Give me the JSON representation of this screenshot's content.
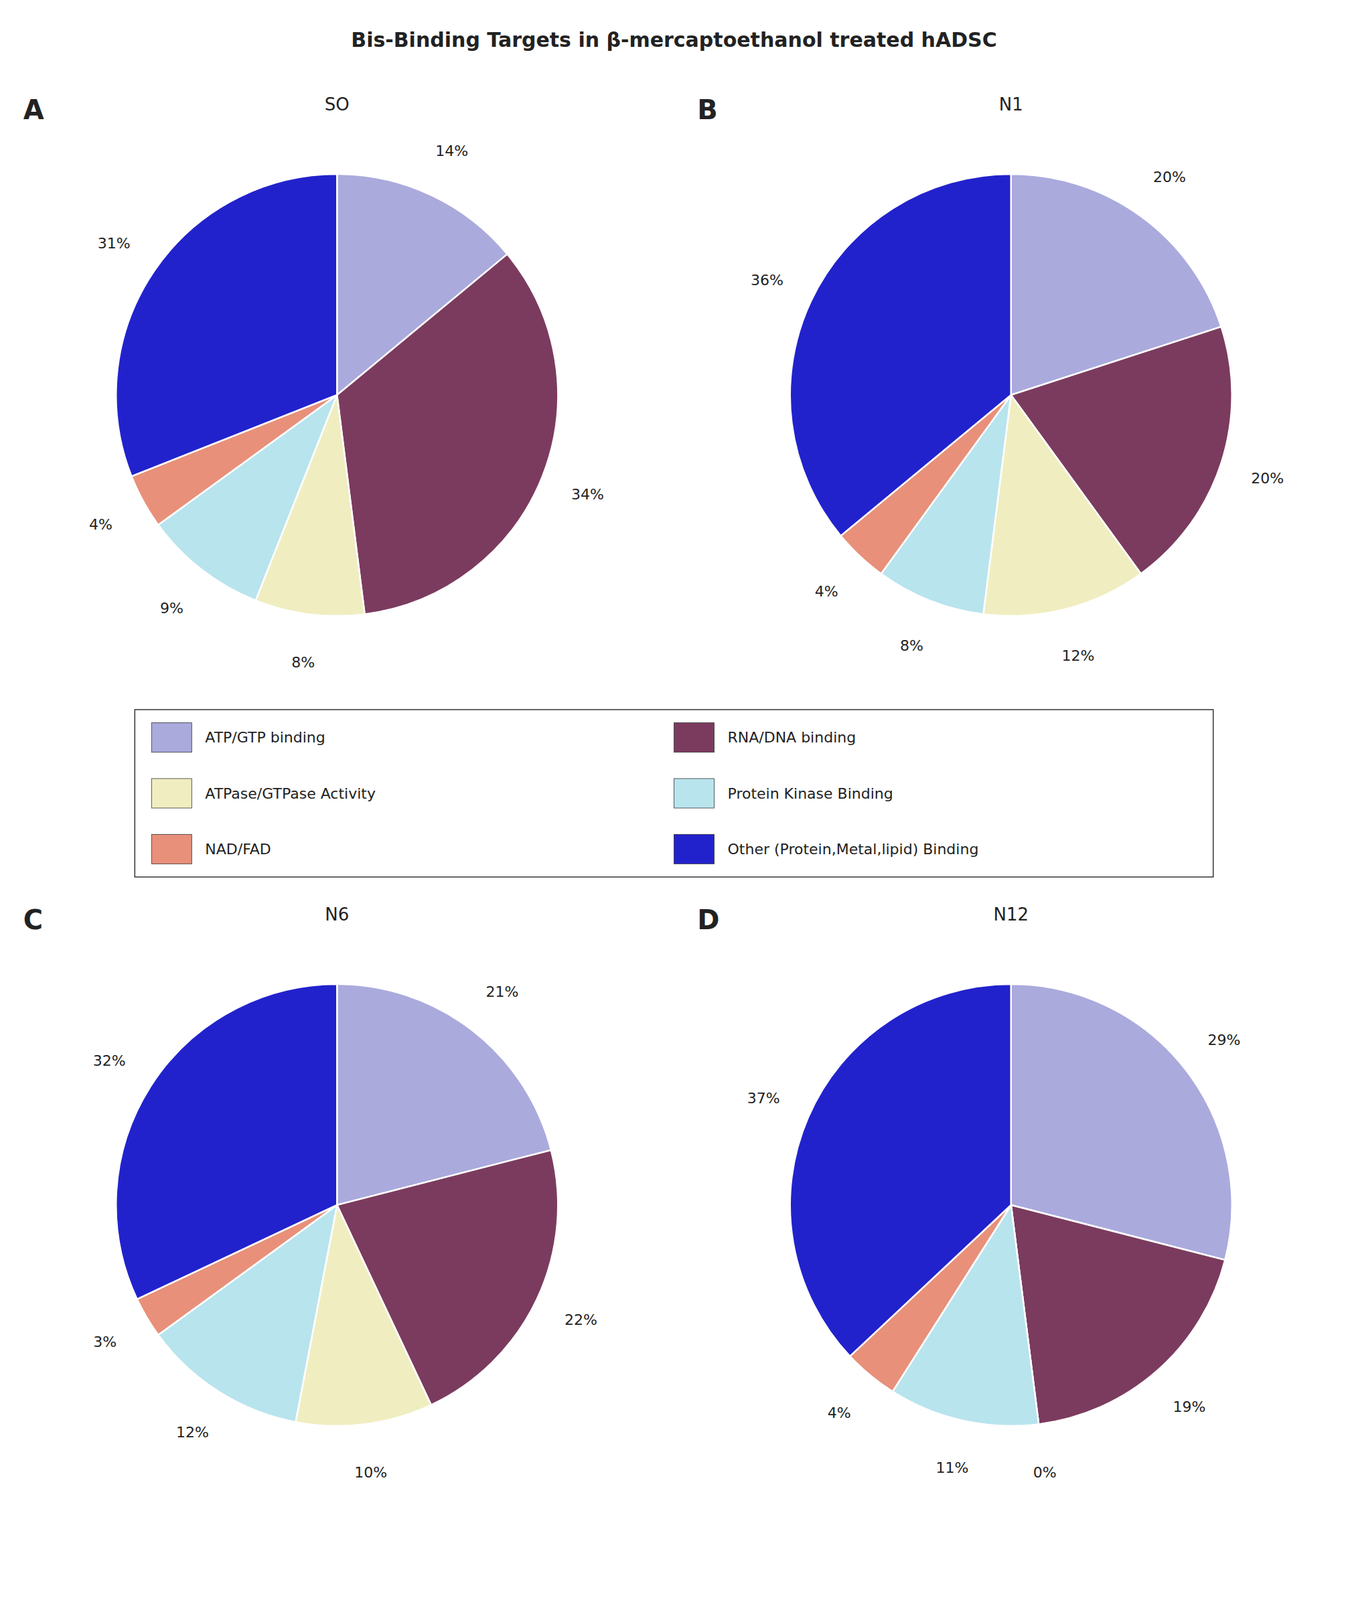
{
  "title": "Bis-Binding Targets in β-mercaptoethanol treated hADSC",
  "chart_data": [
    {
      "type": "pie",
      "annotation": "A",
      "subtitle": "SO",
      "categories": [
        "ATP/GTP binding",
        "RNA/DNA binding",
        "ATPase/GTPase Activity",
        "Protein Kinase Binding",
        "NAD/FAD",
        "Other (Protein,Metal,lipid) Binding"
      ],
      "values": [
        14,
        34,
        8,
        9,
        4,
        31
      ],
      "value_labels": [
        "14%",
        "34%",
        "8%",
        "9%",
        "4%",
        "31%"
      ],
      "colors": [
        "#AAAADD",
        "#7B3B5E",
        "#F0EEC0",
        "#B8E4EE",
        "#E8907A",
        "#2222CC"
      ],
      "data_labels": true,
      "legend": "center"
    },
    {
      "type": "pie",
      "annotation": "B",
      "subtitle": "N1",
      "categories": [
        "ATP/GTP binding",
        "RNA/DNA binding",
        "ATPase/GTPase Activity",
        "Protein Kinase Binding",
        "NAD/FAD",
        "Other (Protein,Metal,lipid) Binding"
      ],
      "values": [
        20,
        20,
        12,
        8,
        4,
        36
      ],
      "value_labels": [
        "20%",
        "20%",
        "12%",
        "8%",
        "4%",
        "36%"
      ],
      "colors": [
        "#AAAADD",
        "#7B3B5E",
        "#F0EEC0",
        "#B8E4EE",
        "#E8907A",
        "#2222CC"
      ],
      "data_labels": true
    },
    {
      "type": "pie",
      "annotation": "C",
      "subtitle": "N6",
      "categories": [
        "ATP/GTP binding",
        "RNA/DNA binding",
        "ATPase/GTPase Activity",
        "Protein Kinase Binding",
        "NAD/FAD",
        "Other (Protein,Metal,lipid) Binding"
      ],
      "values": [
        21,
        22,
        10,
        12,
        3,
        32
      ],
      "value_labels": [
        "21%",
        "22%",
        "10%",
        "12%",
        "3%",
        "32%"
      ],
      "colors": [
        "#AAAADD",
        "#7B3B5E",
        "#F0EEC0",
        "#B8E4EE",
        "#E8907A",
        "#2222CC"
      ],
      "data_labels": true
    },
    {
      "type": "pie",
      "annotation": "D",
      "subtitle": "N12",
      "categories": [
        "ATP/GTP binding",
        "RNA/DNA binding",
        "ATPase/GTPase Activity",
        "Protein Kinase Binding",
        "NAD/FAD",
        "Other (Protein,Metal,lipid) Binding"
      ],
      "values": [
        29,
        19,
        0,
        11,
        4,
        37
      ],
      "value_labels": [
        "29%",
        "19%",
        "0%",
        "11%",
        "4%",
        "37%"
      ],
      "colors": [
        "#AAAADD",
        "#7B3B5E",
        "#F0EEC0",
        "#B8E4EE",
        "#E8907A",
        "#2222CC"
      ],
      "data_labels": true
    }
  ]
}
